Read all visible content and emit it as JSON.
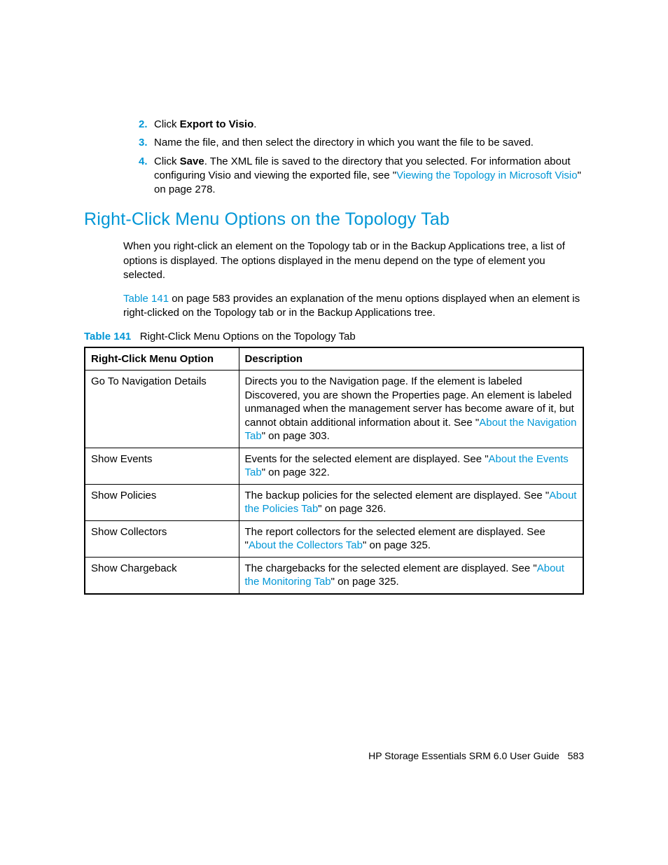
{
  "steps": [
    {
      "num": "2.",
      "pre": "Click ",
      "bold": "Export to Visio",
      "post": "."
    },
    {
      "num": "3.",
      "text": "Name the file, and then select the directory in which you want the file to be saved."
    },
    {
      "num": "4.",
      "pre": "Click ",
      "bold": "Save",
      "mid": ". The XML file is saved to the directory that you selected. For information about configuring Visio and viewing the exported file, see \"",
      "link": "Viewing the Topology in Microsoft Visio",
      "post": "\" on page 278."
    }
  ],
  "heading": "Right-Click Menu Options on the Topology Tab",
  "para1": "When you right-click an element on the Topology tab or in the Backup Applications tree, a list of options is displayed. The options displayed in the menu depend on the type of element you selected.",
  "para2": {
    "link": "Table 141",
    "rest": " on page 583 provides an explanation of the menu options displayed when an element is right-clicked on the Topology tab or in the Backup Applications tree."
  },
  "tableCaption": {
    "num": "Table 141",
    "title": "Right-Click Menu Options on the Topology Tab"
  },
  "table": {
    "headers": {
      "left": "Right-Click Menu Option",
      "right": "Description"
    },
    "rows": [
      {
        "opt": "Go To Navigation Details",
        "pre": "Directs you to the Navigation page. If the element is labeled Discovered, you are shown the Properties page. An element is labeled unmanaged when the management server has become aware of it, but cannot obtain additional information about it. See \"",
        "link": "About the Navigation Tab",
        "post": "\" on page 303."
      },
      {
        "opt": "Show Events",
        "pre": "Events for the selected element are displayed. See \"",
        "link": "About the Events Tab",
        "post": "\" on page 322."
      },
      {
        "opt": "Show Policies",
        "pre": "The backup policies for the selected element are displayed. See \"",
        "link": "About the Policies Tab",
        "post": "\" on page 326."
      },
      {
        "opt": "Show Collectors",
        "pre": "The report collectors for the selected element are displayed. See \"",
        "link": "About the Collectors Tab",
        "post": "\" on page 325."
      },
      {
        "opt": "Show Chargeback",
        "pre": "The chargebacks for the selected element are displayed. See \"",
        "link": "About the Monitoring Tab",
        "post": "\" on page 325."
      }
    ]
  },
  "footer": {
    "title": "HP Storage Essentials SRM 6.0 User Guide",
    "page": "583"
  }
}
